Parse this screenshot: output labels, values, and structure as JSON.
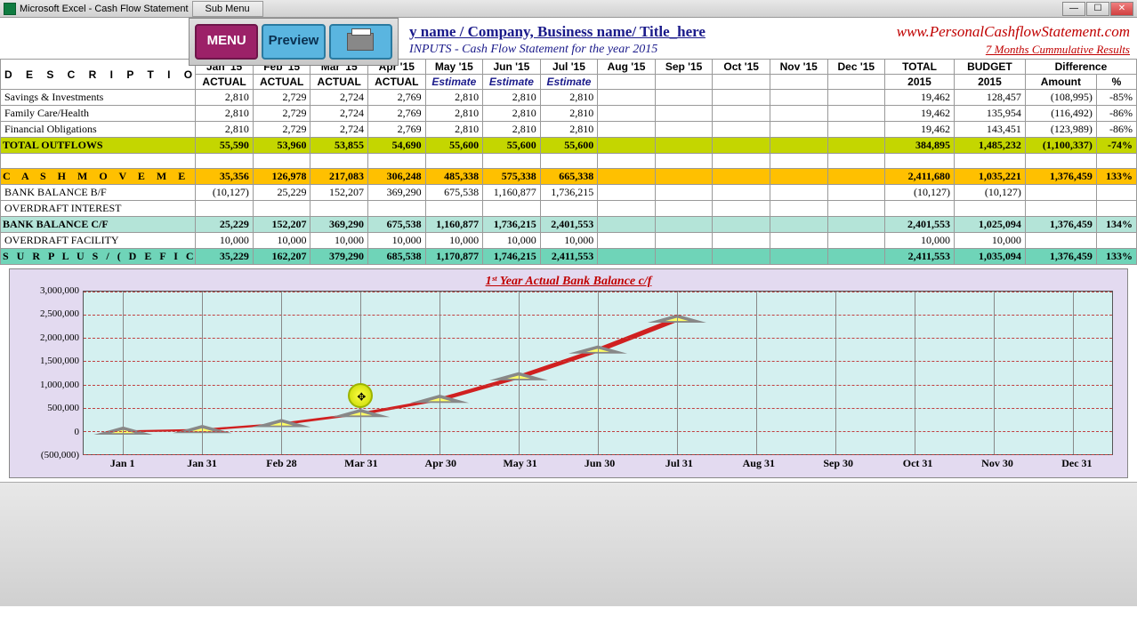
{
  "window": {
    "title": "Microsoft Excel - Cash Flow Statement",
    "submenu": "Sub Menu"
  },
  "toolbar": {
    "menu": "MENU",
    "preview": "Preview"
  },
  "header": {
    "title": "y name / Company, Business name/ Title_here",
    "url": "www.PersonalCashflowStatement.com",
    "subtitle": "INPUTS - Cash Flow Statement for the year 2015",
    "cumulative": "7 Months Cummulative Results"
  },
  "columns": {
    "desc": "D E S C R I P T I O N",
    "months": [
      "Jan '15",
      "Feb '15",
      "Mar '15",
      "Apr '15",
      "May '15",
      "Jun '15",
      "Jul '15",
      "Aug '15",
      "Sep '15",
      "Oct '15",
      "Nov '15",
      "Dec '15"
    ],
    "subs": [
      "ACTUAL",
      "ACTUAL",
      "ACTUAL",
      "ACTUAL",
      "Estimate",
      "Estimate",
      "Estimate",
      "",
      "",
      "",
      "",
      ""
    ],
    "total": "TOTAL",
    "total_year": "2015",
    "budget": "BUDGET",
    "budget_year": "2015",
    "diff": "Difference",
    "amount": "Amount",
    "pct": "%"
  },
  "rows": [
    {
      "type": "plain",
      "desc": "Savings & Investments",
      "vals": [
        "2,810",
        "2,729",
        "2,724",
        "2,769",
        "2,810",
        "2,810",
        "2,810",
        "",
        "",
        "",
        "",
        ""
      ],
      "total": "19,462",
      "budget": "128,457",
      "diff": "(108,995)",
      "pct": "-85%"
    },
    {
      "type": "plain",
      "desc": "Family Care/Health",
      "vals": [
        "2,810",
        "2,729",
        "2,724",
        "2,769",
        "2,810",
        "2,810",
        "2,810",
        "",
        "",
        "",
        "",
        ""
      ],
      "total": "19,462",
      "budget": "135,954",
      "diff": "(116,492)",
      "pct": "-86%"
    },
    {
      "type": "plain",
      "desc": "Financial Obligations",
      "vals": [
        "2,810",
        "2,729",
        "2,724",
        "2,769",
        "2,810",
        "2,810",
        "2,810",
        "",
        "",
        "",
        "",
        ""
      ],
      "total": "19,462",
      "budget": "143,451",
      "diff": "(123,989)",
      "pct": "-86%"
    },
    {
      "type": "outflows",
      "desc": "TOTAL OUTFLOWS",
      "vals": [
        "55,590",
        "53,960",
        "53,855",
        "54,690",
        "55,600",
        "55,600",
        "55,600",
        "",
        "",
        "",
        "",
        ""
      ],
      "total": "384,895",
      "budget": "1,485,232",
      "diff": "(1,100,337)",
      "pct": "-74%"
    },
    {
      "type": "spacer"
    },
    {
      "type": "cash",
      "desc": "C A S H   M O V E M E N T",
      "vals": [
        "35,356",
        "126,978",
        "217,083",
        "306,248",
        "485,338",
        "575,338",
        "665,338",
        "",
        "",
        "",
        "",
        ""
      ],
      "total": "2,411,680",
      "budget": "1,035,221",
      "diff": "1,376,459",
      "pct": "133%"
    },
    {
      "type": "plain",
      "desc": "BANK BALANCE B/F",
      "vals": [
        "(10,127)",
        "25,229",
        "152,207",
        "369,290",
        "675,538",
        "1,160,877",
        "1,736,215",
        "",
        "",
        "",
        "",
        ""
      ],
      "total": "(10,127)",
      "budget": "(10,127)",
      "diff": "",
      "pct": ""
    },
    {
      "type": "plain",
      "desc": "OVERDRAFT INTEREST",
      "vals": [
        "",
        "",
        "",
        "",
        "",
        "",
        "",
        "",
        "",
        "",
        "",
        ""
      ],
      "total": "",
      "budget": "",
      "diff": "",
      "pct": ""
    },
    {
      "type": "bankcf",
      "desc": "BANK BALANCE C/F",
      "vals": [
        "25,229",
        "152,207",
        "369,290",
        "675,538",
        "1,160,877",
        "1,736,215",
        "2,401,553",
        "",
        "",
        "",
        "",
        ""
      ],
      "total": "2,401,553",
      "budget": "1,025,094",
      "diff": "1,376,459",
      "pct": "134%"
    },
    {
      "type": "plain",
      "desc": "OVERDRAFT FACILITY",
      "vals": [
        "10,000",
        "10,000",
        "10,000",
        "10,000",
        "10,000",
        "10,000",
        "10,000",
        "",
        "",
        "",
        "",
        ""
      ],
      "total": "10,000",
      "budget": "10,000",
      "diff": "",
      "pct": ""
    },
    {
      "type": "surplus",
      "desc": "S U R P L U S    /    ( D E F I C I T )",
      "vals": [
        "35,229",
        "162,207",
        "379,290",
        "685,538",
        "1,170,877",
        "1,746,215",
        "2,411,553",
        "",
        "",
        "",
        "",
        ""
      ],
      "total": "2,411,553",
      "budget": "1,035,094",
      "diff": "1,376,459",
      "pct": "133%"
    }
  ],
  "chart": {
    "title": "1ˢᵗ Year Actual Bank Balance c/f",
    "type": "line",
    "background": "#d4f0f0",
    "outer_background": "#e3daf0",
    "line_color": "#d02020",
    "marker_fill": "#ffff66",
    "marker_stroke": "#888888",
    "grid_color": "#c04040",
    "y_min": -500000,
    "y_max": 3000000,
    "y_ticks": [
      "3,000,000",
      "2,500,000",
      "2,000,000",
      "1,500,000",
      "1,000,000",
      "500,000",
      "0",
      "(500,000)"
    ],
    "x_labels": [
      "Jan 1",
      "Jan 31",
      "Feb 28",
      "Mar 31",
      "Apr 30",
      "May 31",
      "Jun 30",
      "Jul 31",
      "Aug 31",
      "Sep 30",
      "Oct 31",
      "Nov 30",
      "Dec 31"
    ],
    "values": [
      -10127,
      25229,
      152207,
      369290,
      675538,
      1160877,
      1736215,
      2401553
    ],
    "highlight_index": 3
  }
}
